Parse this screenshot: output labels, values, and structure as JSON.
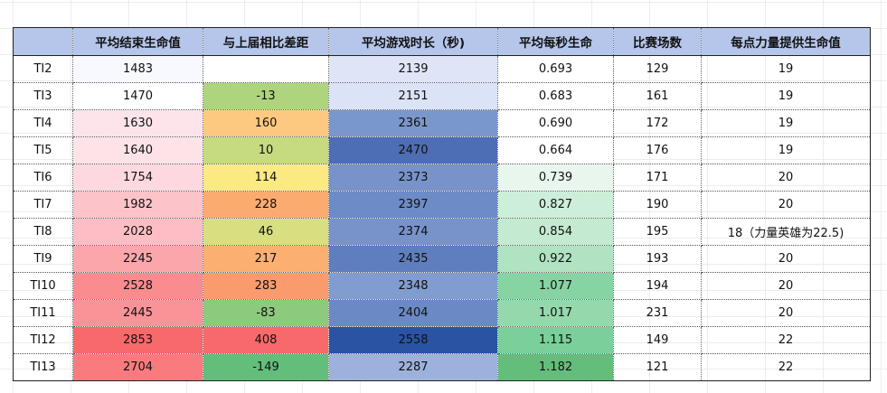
{
  "table": {
    "headers": [
      "",
      "平均结束生命值",
      "与上届相比差距",
      "平均游戏时长（秒)",
      "平均每秒生命",
      "比赛场数",
      "每点力量提供生命值"
    ],
    "rows": [
      {
        "name": "TI2",
        "hp": "1483",
        "diff": "",
        "time": "2139",
        "hps": "0.693",
        "games": "129",
        "str": "19",
        "colors": {
          "hp": "#f8f8ff",
          "diff": "#ffffff",
          "time": "#dfe5f7",
          "hps": "#ffffff"
        }
      },
      {
        "name": "TI3",
        "hp": "1470",
        "diff": "-13",
        "time": "2151",
        "hps": "0.683",
        "games": "161",
        "str": "19",
        "colors": {
          "hp": "#ffffff",
          "diff": "#aed47d",
          "time": "#dbe3f6",
          "hps": "#ffffff"
        }
      },
      {
        "name": "TI4",
        "hp": "1630",
        "diff": "160",
        "time": "2361",
        "hps": "0.690",
        "games": "172",
        "str": "19",
        "colors": {
          "hp": "#fde4ea",
          "diff": "#fdc980",
          "time": "#7a97cc",
          "hps": "#ffffff"
        }
      },
      {
        "name": "TI5",
        "hp": "1640",
        "diff": "10",
        "time": "2470",
        "hps": "0.664",
        "games": "176",
        "str": "19",
        "colors": {
          "hp": "#fde3e8",
          "diff": "#c6da7f",
          "time": "#4d6db5",
          "hps": "#ffffff"
        }
      },
      {
        "name": "TI6",
        "hp": "1754",
        "diff": "114",
        "time": "2373",
        "hps": "0.739",
        "games": "171",
        "str": "20",
        "colors": {
          "hp": "#fdd9df",
          "diff": "#fbe982",
          "time": "#7793ca",
          "hps": "#e9f6ee"
        }
      },
      {
        "name": "TI7",
        "hp": "1982",
        "diff": "228",
        "time": "2397",
        "hps": "0.827",
        "games": "190",
        "str": "20",
        "colors": {
          "hp": "#fcc3c9",
          "diff": "#fbab6f",
          "time": "#6d8bc6",
          "hps": "#cdeed9"
        }
      },
      {
        "name": "TI8",
        "hp": "2028",
        "diff": "46",
        "time": "2374",
        "hps": "0.854",
        "games": "195",
        "str": "18（力量英雄为22.5)",
        "colors": {
          "hp": "#fcbec4",
          "diff": "#d7df81",
          "time": "#7793ca",
          "hps": "#c4ebd1"
        }
      },
      {
        "name": "TI9",
        "hp": "2245",
        "diff": "217",
        "time": "2435",
        "hps": "0.922",
        "games": "193",
        "str": "20",
        "colors": {
          "hp": "#fba6ab",
          "diff": "#fbaf71",
          "time": "#5f7ebf",
          "hps": "#afe3c1"
        }
      },
      {
        "name": "TI10",
        "hp": "2528",
        "diff": "283",
        "time": "2348",
        "hps": "1.077",
        "games": "194",
        "str": "20",
        "colors": {
          "hp": "#fa8b8f",
          "diff": "#f99b6c",
          "time": "#819dd0",
          "hps": "#86d3a3"
        }
      },
      {
        "name": "TI11",
        "hp": "2445",
        "diff": "-83",
        "time": "2404",
        "hps": "1.017",
        "games": "231",
        "str": "20",
        "colors": {
          "hp": "#fa9397",
          "diff": "#8cca7e",
          "time": "#6b8ac5",
          "hps": "#94d8ac"
        }
      },
      {
        "name": "TI12",
        "hp": "2853",
        "diff": "408",
        "time": "2558",
        "hps": "1.115",
        "games": "149",
        "str": "22",
        "colors": {
          "hp": "#f8696b",
          "diff": "#f8696b",
          "time": "#2a54a3",
          "hps": "#7bcf9a"
        }
      },
      {
        "name": "TI13",
        "hp": "2704",
        "diff": "-149",
        "time": "2287",
        "hps": "1.182",
        "games": "121",
        "str": "22",
        "colors": {
          "hp": "#f97b7e",
          "diff": "#63be7b",
          "time": "#9cb2dc",
          "hps": "#63be7b"
        }
      }
    ]
  }
}
